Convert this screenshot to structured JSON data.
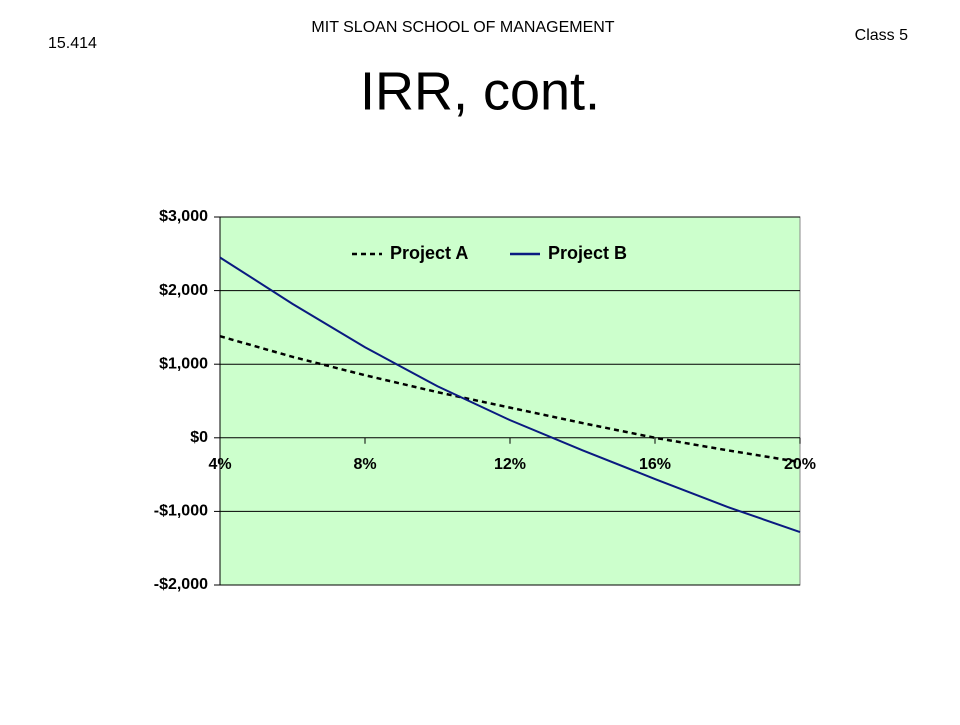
{
  "header": {
    "school": "MIT SLOAN SCHOOL OF MANAGEMENT",
    "course": "15.414",
    "class": "Class 5",
    "title": "IRR, cont."
  },
  "chart_data": {
    "type": "line",
    "x": [
      4,
      6,
      8,
      10,
      12,
      14,
      16,
      18,
      20
    ],
    "series": [
      {
        "name": "Project A",
        "color": "#000000",
        "dashed": true,
        "values": [
          1380,
          1100,
          850,
          620,
          410,
          200,
          0,
          -170,
          -330
        ]
      },
      {
        "name": "Project B",
        "color": "#0a1a80",
        "dashed": false,
        "values": [
          2450,
          1820,
          1230,
          700,
          240,
          -170,
          -560,
          -940,
          -1280
        ]
      }
    ],
    "xlim": [
      4,
      20
    ],
    "xticks": [
      {
        "value": 4,
        "label": "4%"
      },
      {
        "value": 8,
        "label": "8%"
      },
      {
        "value": 12,
        "label": "12%"
      },
      {
        "value": 16,
        "label": "16%"
      },
      {
        "value": 20,
        "label": "20%"
      }
    ],
    "ylim": [
      -2000,
      3000
    ],
    "yticks": [
      {
        "value": -2000,
        "label": "-$2,000"
      },
      {
        "value": -1000,
        "label": "-$1,000"
      },
      {
        "value": 0,
        "label": "$0"
      },
      {
        "value": 1000,
        "label": "$1,000"
      },
      {
        "value": 2000,
        "label": "$2,000"
      },
      {
        "value": 3000,
        "label": "$3,000"
      }
    ],
    "grid": true,
    "legend": "top",
    "background": "#ccffcc"
  }
}
